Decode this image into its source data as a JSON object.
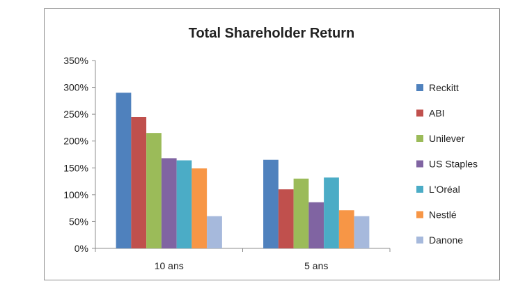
{
  "chart_data": {
    "type": "bar",
    "title": "Total Shareholder Return",
    "categories": [
      "10 ans",
      "5 ans"
    ],
    "ylim": [
      0,
      350
    ],
    "ytick_step": 50,
    "ytick_labels": [
      "0%",
      "50%",
      "100%",
      "150%",
      "200%",
      "250%",
      "300%",
      "350%"
    ],
    "grid": false,
    "legend_position": "right",
    "series": [
      {
        "name": "Reckitt",
        "color": "#4F81BD",
        "values": [
          290,
          165
        ]
      },
      {
        "name": "ABI",
        "color": "#C0504D",
        "values": [
          245,
          110
        ]
      },
      {
        "name": "Unilever",
        "color": "#9BBB59",
        "values": [
          215,
          130
        ]
      },
      {
        "name": "US Staples",
        "color": "#8064A2",
        "values": [
          168,
          86
        ]
      },
      {
        "name": "L'Oréal",
        "color": "#4BACC6",
        "values": [
          164,
          132
        ]
      },
      {
        "name": "Nestlé",
        "color": "#F79646",
        "values": [
          149,
          71
        ]
      },
      {
        "name": "Danone",
        "color": "#A6B9DC",
        "values": [
          60,
          60
        ]
      }
    ]
  }
}
